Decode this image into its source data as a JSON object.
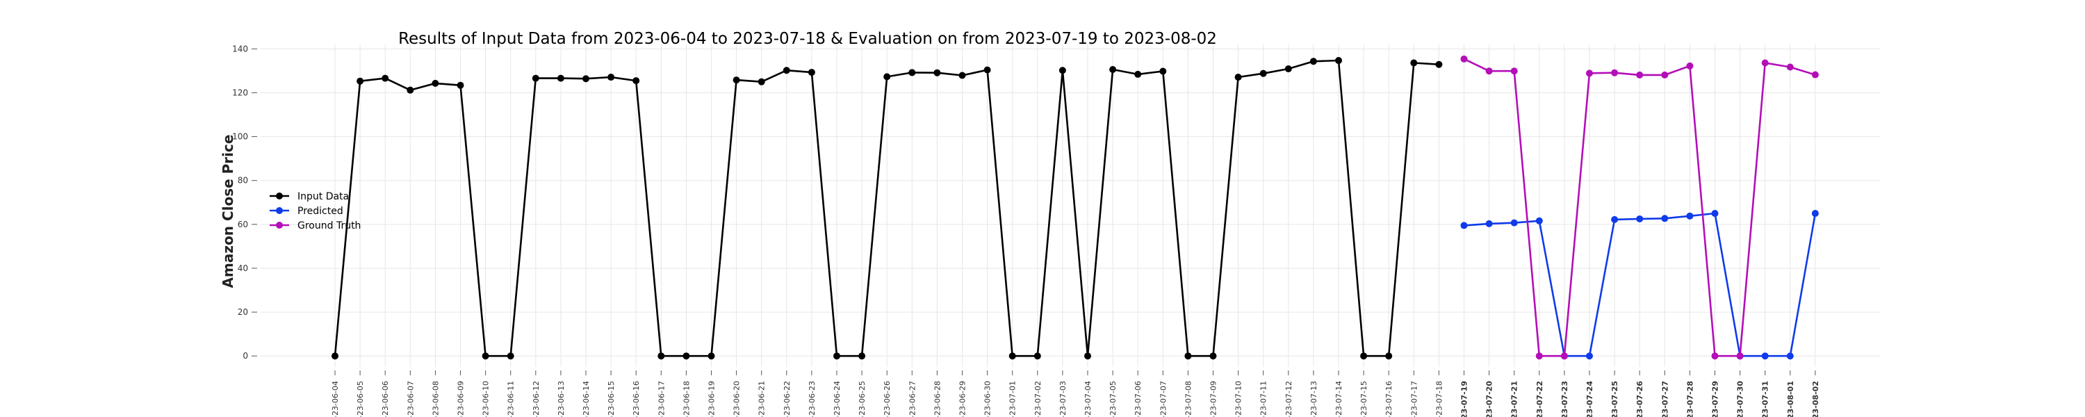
{
  "chart_data": {
    "type": "line",
    "title": "Results of Input Data from 2023-06-04 to 2023-07-18 & Evaluation on from 2023-07-19 to 2023-08-02",
    "xlabel": "",
    "ylabel": "Amazon Close Price",
    "ylim": [
      -5,
      142
    ],
    "yticks": [
      0,
      20,
      40,
      60,
      80,
      100,
      120,
      140
    ],
    "grid": true,
    "legend": "center-left",
    "tick_labels": [
      "-23-06-04",
      "-23-06-05",
      "-23-06-06",
      "-23-06-07",
      "-23-06-08",
      "-23-06-09",
      "-23-06-10",
      "-23-06-11",
      "-23-06-12",
      "-23-06-13",
      "-23-06-14",
      "-23-06-15",
      "-23-06-16",
      "-23-06-17",
      "-23-06-18",
      "-23-06-19",
      "-23-06-20",
      "-23-06-21",
      "-23-06-22",
      "-23-06-23",
      "-23-06-24",
      "-23-06-25",
      "-23-06-26",
      "-23-06-27",
      "-23-06-28",
      "-23-06-29",
      "-23-06-30",
      "-23-07-01",
      "-23-07-02",
      "-23-07-03",
      "-23-07-04",
      "-23-07-05",
      "-23-07-06",
      "-23-07-07",
      "-23-07-08",
      "-23-07-09",
      "-23-07-10",
      "-23-07-11",
      "-23-07-12",
      "-23-07-13",
      "-23-07-14",
      "-23-07-15",
      "-23-07-16",
      "-23-07-17",
      "-23-07-18",
      "-23-07-19",
      "-23-07-20",
      "-23-07-21",
      "-23-07-22",
      "-23-07-23",
      "-23-07-24",
      "-23-07-25",
      "-23-07-26",
      "-23-07-27",
      "-23-07-28",
      "-23-07-29",
      "-23-07-30",
      "-23-07-31",
      "-23-08-01",
      "-23-08-02"
    ],
    "bold_from_index": 45,
    "x": [
      "2023-06-04",
      "2023-06-05",
      "2023-06-06",
      "2023-06-07",
      "2023-06-08",
      "2023-06-09",
      "2023-06-10",
      "2023-06-11",
      "2023-06-12",
      "2023-06-13",
      "2023-06-14",
      "2023-06-15",
      "2023-06-16",
      "2023-06-17",
      "2023-06-18",
      "2023-06-19",
      "2023-06-20",
      "2023-06-21",
      "2023-06-22",
      "2023-06-23",
      "2023-06-24",
      "2023-06-25",
      "2023-06-26",
      "2023-06-27",
      "2023-06-28",
      "2023-06-29",
      "2023-06-30",
      "2023-07-01",
      "2023-07-02",
      "2023-07-03",
      "2023-07-04",
      "2023-07-05",
      "2023-07-06",
      "2023-07-07",
      "2023-07-08",
      "2023-07-09",
      "2023-07-10",
      "2023-07-11",
      "2023-07-12",
      "2023-07-13",
      "2023-07-14",
      "2023-07-15",
      "2023-07-16",
      "2023-07-17",
      "2023-07-18",
      "2023-07-19",
      "2023-07-20",
      "2023-07-21",
      "2023-07-22",
      "2023-07-23",
      "2023-07-24",
      "2023-07-25",
      "2023-07-26",
      "2023-07-27",
      "2023-07-28",
      "2023-07-29",
      "2023-07-30",
      "2023-07-31",
      "2023-08-01",
      "2023-08-02"
    ],
    "series": [
      {
        "name": "Input Data",
        "color": "#000000",
        "x": [
          "2023-06-04",
          "2023-06-05",
          "2023-06-06",
          "2023-06-07",
          "2023-06-08",
          "2023-06-09",
          "2023-06-10",
          "2023-06-11",
          "2023-06-12",
          "2023-06-13",
          "2023-06-14",
          "2023-06-15",
          "2023-06-16",
          "2023-06-17",
          "2023-06-18",
          "2023-06-19",
          "2023-06-20",
          "2023-06-21",
          "2023-06-22",
          "2023-06-23",
          "2023-06-24",
          "2023-06-25",
          "2023-06-26",
          "2023-06-27",
          "2023-06-28",
          "2023-06-29",
          "2023-06-30",
          "2023-07-01",
          "2023-07-02",
          "2023-07-03",
          "2023-07-04",
          "2023-07-05",
          "2023-07-06",
          "2023-07-07",
          "2023-07-08",
          "2023-07-09",
          "2023-07-10",
          "2023-07-11",
          "2023-07-12",
          "2023-07-13",
          "2023-07-14",
          "2023-07-15",
          "2023-07-16",
          "2023-07-17",
          "2023-07-18"
        ],
        "values": [
          0,
          125.3,
          126.6,
          121.2,
          124.3,
          123.4,
          0,
          0,
          126.6,
          126.6,
          126.4,
          127.1,
          125.5,
          0,
          0,
          0,
          125.8,
          125.0,
          130.2,
          129.3,
          0,
          0,
          127.3,
          129.2,
          129.1,
          127.9,
          130.4,
          0,
          0,
          130.2,
          0,
          130.6,
          128.4,
          129.8,
          0,
          0,
          127.1,
          128.8,
          130.9,
          134.3,
          134.7,
          0,
          0,
          133.6,
          132.9
        ]
      },
      {
        "name": "Predicted",
        "color": "#0f3bea",
        "x": [
          "2023-07-19",
          "2023-07-20",
          "2023-07-21",
          "2023-07-22",
          "2023-07-23",
          "2023-07-24",
          "2023-07-25",
          "2023-07-26",
          "2023-07-27",
          "2023-07-28",
          "2023-07-29",
          "2023-07-30",
          "2023-07-31",
          "2023-08-01",
          "2023-08-02"
        ],
        "values": [
          59.5,
          60.3,
          60.7,
          61.6,
          0,
          0,
          62.2,
          62.5,
          62.7,
          63.8,
          65.0,
          0,
          0,
          0,
          65.0
        ]
      },
      {
        "name": "Ground Truth",
        "color": "#b40eb8",
        "x": [
          "2023-07-19",
          "2023-07-20",
          "2023-07-21",
          "2023-07-22",
          "2023-07-23",
          "2023-07-24",
          "2023-07-25",
          "2023-07-26",
          "2023-07-27",
          "2023-07-28",
          "2023-07-29",
          "2023-07-30",
          "2023-07-31",
          "2023-08-01",
          "2023-08-02"
        ],
        "values": [
          135.4,
          129.9,
          129.9,
          0,
          0,
          128.9,
          129.1,
          128.1,
          128.1,
          132.2,
          0,
          0,
          133.6,
          131.7,
          128.2
        ]
      }
    ]
  }
}
